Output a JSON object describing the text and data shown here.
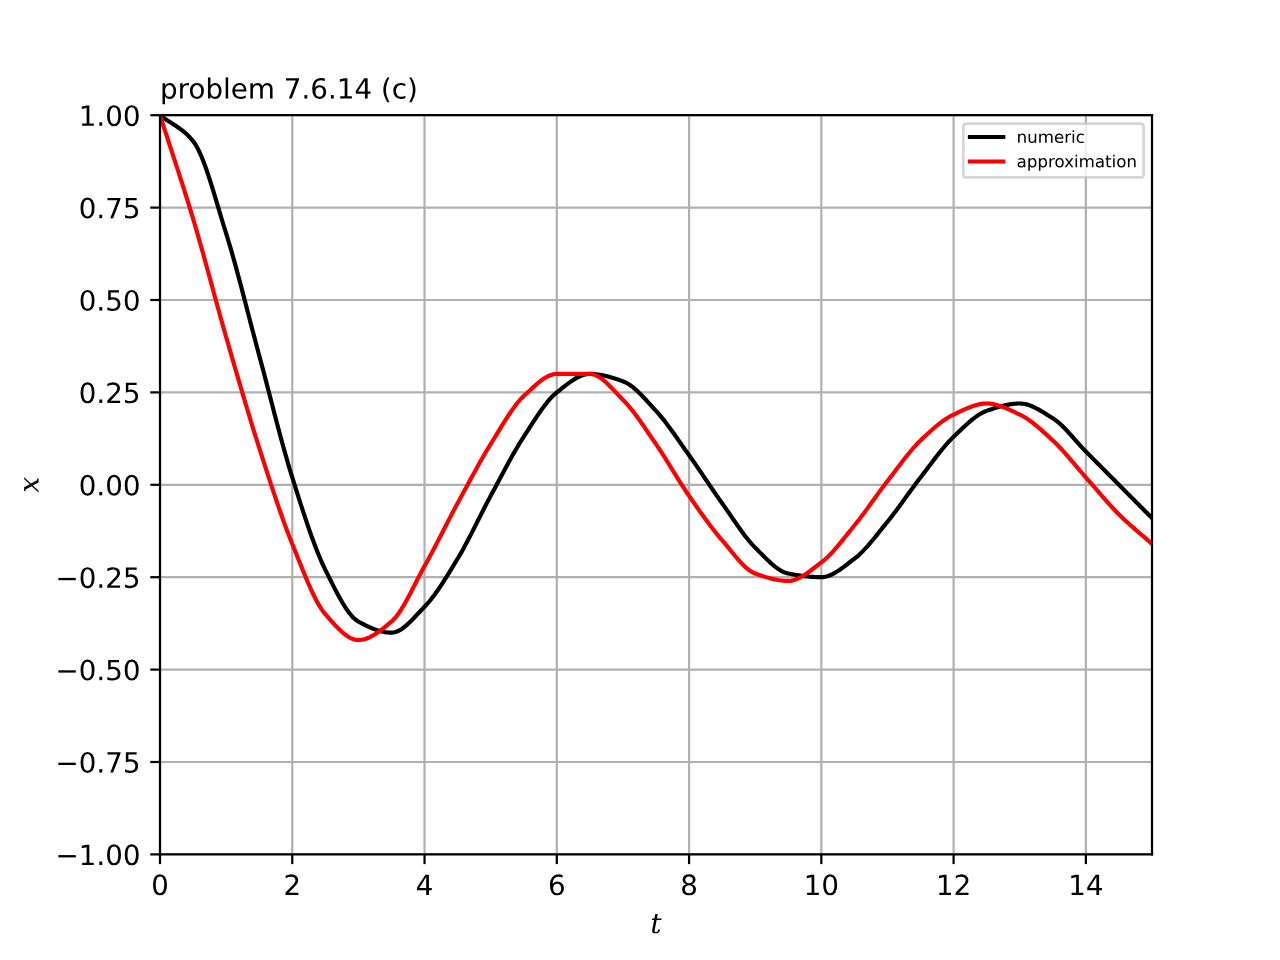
{
  "chart_data": {
    "type": "line",
    "title": "problem 7.6.14 (c)",
    "xlabel": "t",
    "ylabel": "x",
    "x": [
      0,
      0.5,
      1,
      1.5,
      2,
      2.5,
      3,
      3.5,
      4,
      4.5,
      5,
      5.5,
      6,
      6.5,
      7,
      7.5,
      8,
      8.5,
      9,
      9.5,
      10,
      10.5,
      11,
      11.5,
      12,
      12.5,
      13,
      13.5,
      14,
      14.5,
      15
    ],
    "series": [
      {
        "name": "numeric",
        "color": "#000000",
        "values": [
          1.0,
          0.93,
          0.68,
          0.35,
          0.02,
          -0.23,
          -0.37,
          -0.4,
          -0.33,
          -0.2,
          -0.03,
          0.13,
          0.25,
          0.3,
          0.28,
          0.2,
          0.08,
          -0.05,
          -0.17,
          -0.24,
          -0.25,
          -0.2,
          -0.1,
          0.02,
          0.13,
          0.2,
          0.22,
          0.18,
          0.09,
          0.0,
          -0.09
        ]
      },
      {
        "name": "approximation",
        "color": "#ff0000",
        "values": [
          1.0,
          0.72,
          0.4,
          0.1,
          -0.16,
          -0.35,
          -0.42,
          -0.37,
          -0.22,
          -0.05,
          0.11,
          0.24,
          0.3,
          0.3,
          0.23,
          0.11,
          -0.03,
          -0.15,
          -0.24,
          -0.26,
          -0.21,
          -0.11,
          0.01,
          0.12,
          0.19,
          0.22,
          0.19,
          0.12,
          0.02,
          -0.08,
          -0.16
        ]
      }
    ],
    "xlim": [
      0,
      15
    ],
    "xticks": [
      0,
      2,
      4,
      6,
      8,
      10,
      12,
      14
    ],
    "ylim": [
      -1,
      1
    ],
    "yticks": [
      {
        "value": -1,
        "label": "−1.00"
      },
      {
        "value": -0.75,
        "label": "−0.75"
      },
      {
        "value": -0.5,
        "label": "−0.50"
      },
      {
        "value": -0.25,
        "label": "−0.25"
      },
      {
        "value": 0,
        "label": "0.00"
      },
      {
        "value": 0.25,
        "label": "0.25"
      },
      {
        "value": 0.5,
        "label": "0.50"
      },
      {
        "value": 0.75,
        "label": "0.75"
      },
      {
        "value": 1,
        "label": "1.00"
      }
    ],
    "grid": true,
    "legend": "top right",
    "line_style": "solid",
    "marker": "none"
  }
}
